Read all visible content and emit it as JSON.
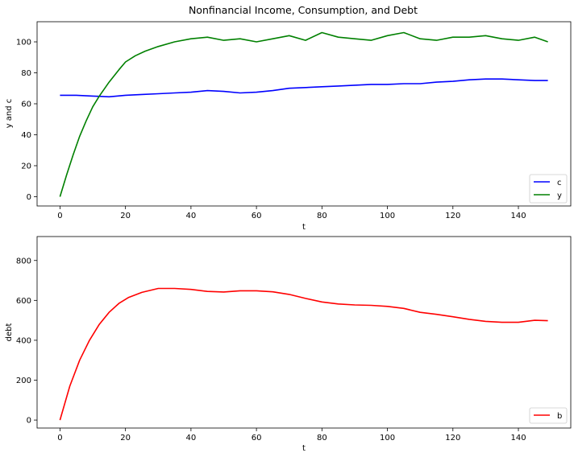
{
  "figure_title": "Nonfinancial Income, Consumption, and Debt",
  "chart_data": [
    {
      "type": "line",
      "title": "Nonfinancial Income, Consumption, and Debt",
      "xlabel": "t",
      "ylabel": "y and c",
      "xlim": [
        -7,
        156
      ],
      "ylim": [
        -6,
        113
      ],
      "xticks": [
        0,
        20,
        40,
        60,
        80,
        100,
        120,
        140
      ],
      "yticks": [
        0,
        20,
        40,
        60,
        80,
        100
      ],
      "grid": false,
      "legend_position": "lower-right",
      "legend": [
        "c",
        "y"
      ],
      "series": [
        {
          "name": "c",
          "color": "#0000ff",
          "highlight": true,
          "x": [
            0,
            5,
            10,
            15,
            20,
            25,
            30,
            35,
            40,
            45,
            50,
            55,
            60,
            65,
            70,
            75,
            80,
            85,
            90,
            95,
            100,
            105,
            110,
            115,
            120,
            125,
            130,
            135,
            140,
            145,
            149
          ],
          "y": [
            65.5,
            65.5,
            65,
            64.5,
            65.5,
            66,
            66.5,
            67,
            67.5,
            68.5,
            68,
            67,
            67.5,
            68.5,
            70,
            70.5,
            71,
            71.5,
            72,
            72.5,
            72.5,
            73,
            73,
            74,
            74.5,
            75.5,
            76,
            76,
            75.5,
            75,
            75
          ]
        },
        {
          "name": "y",
          "color": "#008000",
          "highlight": true,
          "x": [
            0,
            2,
            4,
            6,
            8,
            10,
            12,
            15,
            18,
            20,
            23,
            26,
            30,
            35,
            40,
            45,
            50,
            55,
            60,
            65,
            70,
            75,
            80,
            85,
            90,
            95,
            100,
            105,
            110,
            115,
            120,
            125,
            130,
            135,
            140,
            145,
            149
          ],
          "y": [
            0,
            14,
            27,
            39,
            49,
            58,
            65,
            74,
            82,
            87,
            91,
            94,
            97,
            100,
            102,
            103,
            101,
            102,
            100,
            102,
            104,
            101,
            106,
            103,
            102,
            101,
            104,
            106,
            102,
            101,
            103,
            103,
            104,
            102,
            101,
            103,
            100
          ]
        }
      ]
    },
    {
      "type": "line",
      "title": "",
      "xlabel": "t",
      "ylabel": "debt",
      "xlim": [
        -7,
        156
      ],
      "ylim": [
        -40,
        920
      ],
      "xticks": [
        0,
        20,
        40,
        60,
        80,
        100,
        120,
        140
      ],
      "yticks": [
        0,
        200,
        400,
        600,
        800
      ],
      "grid": false,
      "legend_position": "lower-right",
      "legend": [
        "b"
      ],
      "series": [
        {
          "name": "b",
          "color": "#ff0000",
          "highlight": true,
          "x": [
            0,
            3,
            6,
            9,
            12,
            15,
            18,
            21,
            25,
            30,
            35,
            40,
            45,
            50,
            55,
            60,
            65,
            70,
            75,
            80,
            85,
            90,
            95,
            100,
            105,
            110,
            115,
            120,
            125,
            130,
            135,
            140,
            145,
            149
          ],
          "y": [
            0,
            170,
            300,
            400,
            480,
            540,
            585,
            615,
            640,
            660,
            660,
            655,
            645,
            642,
            648,
            648,
            643,
            630,
            610,
            592,
            582,
            577,
            575,
            570,
            560,
            540,
            530,
            518,
            505,
            495,
            490,
            490,
            500,
            498
          ]
        }
      ]
    }
  ]
}
